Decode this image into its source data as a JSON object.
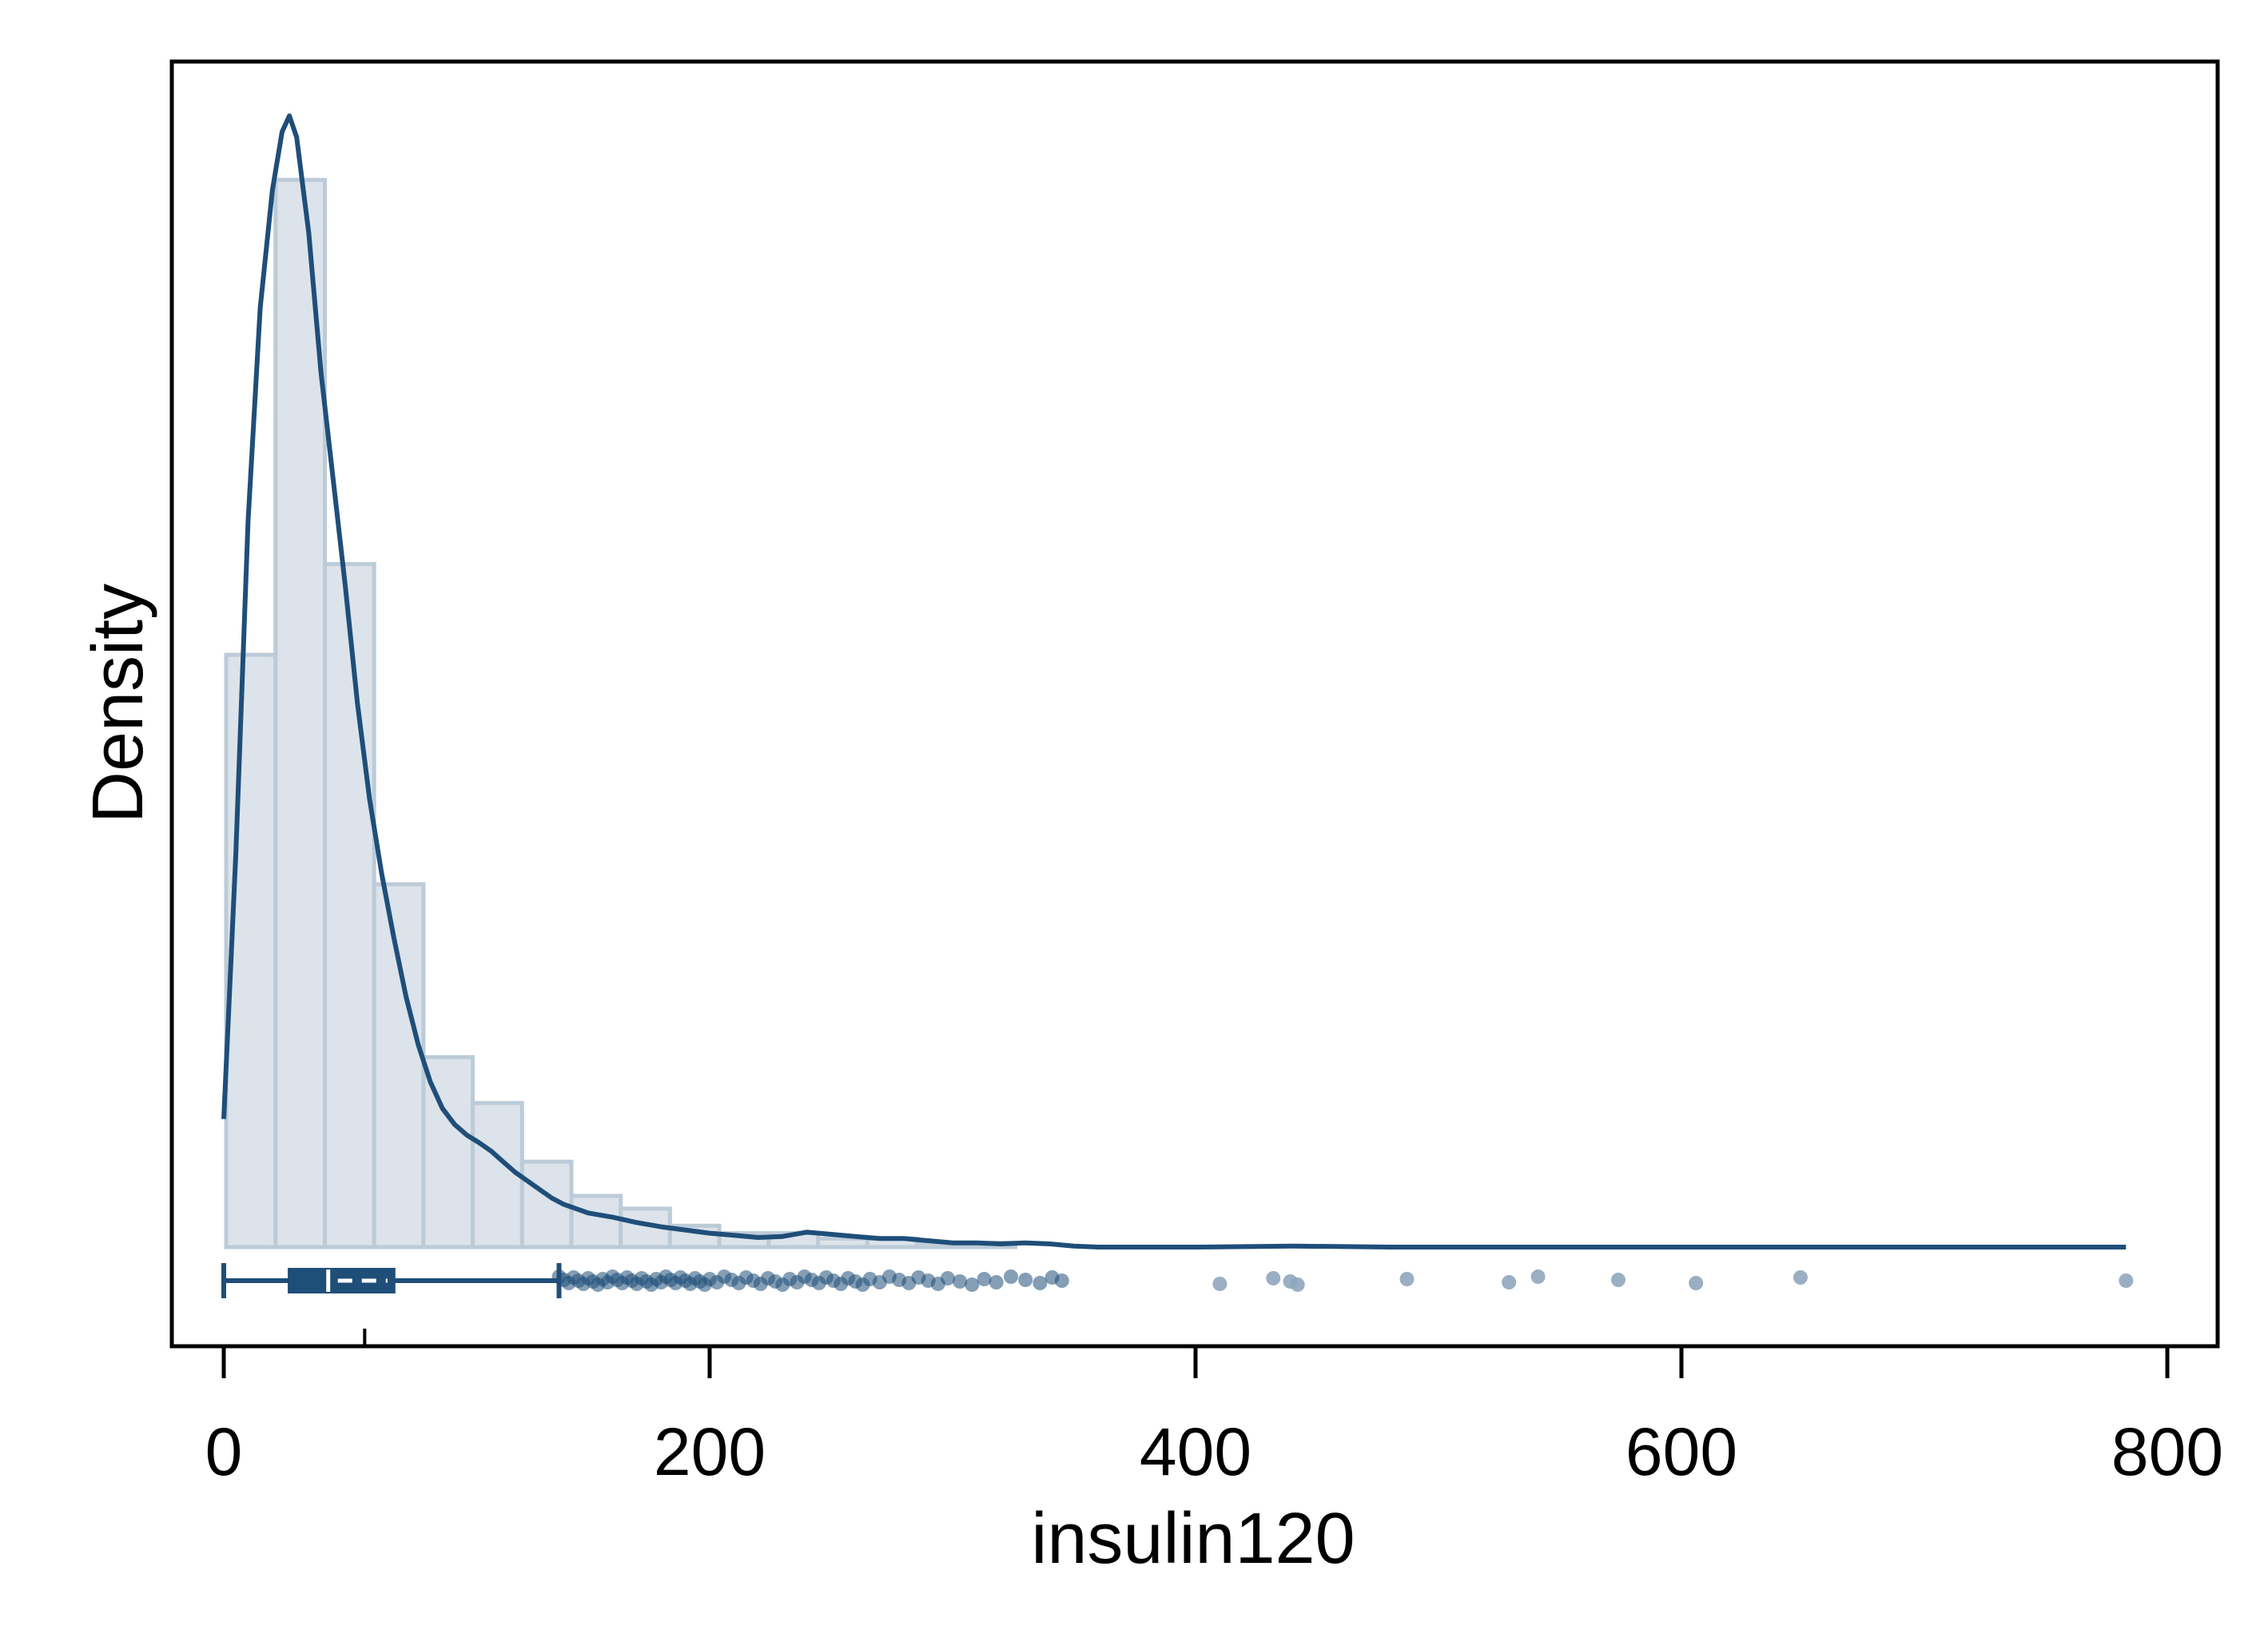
{
  "chart_data": {
    "type": "histogram",
    "xlabel": "insulin120",
    "ylabel": "Density",
    "xlim": [
      -21,
      822
    ],
    "x_ticks": [
      0,
      200,
      400,
      600,
      800
    ],
    "x_tick_labels": [
      "0",
      "200",
      "400",
      "600",
      "800"
    ],
    "y_ticks_labeled": false,
    "grid": false,
    "legend": "none",
    "histogram": {
      "bin_width": 20.3,
      "bin_start": 1,
      "relative_heights": [
        0.555,
        1.0,
        0.64,
        0.34,
        0.178,
        0.135,
        0.08,
        0.048,
        0.036,
        0.02,
        0.013,
        0.013,
        0.008,
        0.008,
        0.004,
        0.004
      ]
    },
    "density_curve": {
      "x": [
        0,
        5,
        10,
        15,
        20,
        24,
        27,
        30,
        35,
        40,
        45,
        50,
        55,
        60,
        65,
        70,
        75,
        80,
        85,
        90,
        95,
        100,
        105,
        110,
        115,
        120,
        125,
        130,
        135,
        140,
        145,
        150,
        160,
        170,
        180,
        190,
        200,
        210,
        220,
        230,
        240,
        250,
        260,
        270,
        280,
        290,
        300,
        310,
        320,
        330,
        340,
        350,
        360,
        380,
        400,
        440,
        480,
        520,
        560,
        600,
        650,
        700,
        750,
        783
      ],
      "y": [
        0.12,
        0.37,
        0.68,
        0.88,
        0.99,
        1.045,
        1.06,
        1.04,
        0.95,
        0.82,
        0.72,
        0.62,
        0.51,
        0.42,
        0.35,
        0.29,
        0.235,
        0.19,
        0.155,
        0.13,
        0.115,
        0.105,
        0.098,
        0.09,
        0.08,
        0.07,
        0.062,
        0.054,
        0.046,
        0.04,
        0.036,
        0.032,
        0.028,
        0.023,
        0.019,
        0.016,
        0.013,
        0.011,
        0.009,
        0.01,
        0.014,
        0.012,
        0.01,
        0.008,
        0.008,
        0.006,
        0.004,
        0.004,
        0.003,
        0.004,
        0.003,
        0.001,
        0.0,
        0.0,
        0.0,
        0.001,
        0.0,
        0.0,
        0.0,
        0.0,
        0.0,
        0.0,
        0.0,
        0.0
      ]
    },
    "boxplot": {
      "min": 0,
      "q1": 27,
      "median": 43,
      "mean": 58,
      "q3": 70,
      "whisker_high": 138,
      "outliers": [
        138,
        140,
        142,
        144,
        146,
        148,
        150,
        152,
        154,
        156,
        158,
        160,
        162,
        164,
        166,
        168,
        170,
        172,
        174,
        176,
        178,
        180,
        182,
        184,
        186,
        188,
        190,
        192,
        194,
        196,
        198,
        200,
        203,
        206,
        209,
        212,
        215,
        218,
        221,
        224,
        227,
        230,
        233,
        236,
        239,
        242,
        245,
        248,
        251,
        254,
        257,
        260,
        263,
        266,
        270,
        274,
        278,
        282,
        286,
        290,
        294,
        298,
        303,
        308,
        313,
        318,
        324,
        330,
        336,
        341,
        345,
        410,
        432,
        439,
        442,
        487,
        529,
        541,
        574,
        606,
        649,
        783
      ]
    },
    "colors": {
      "line": "#1f4e79",
      "bar_fill": "#dce3ea",
      "bar_edge": "#bccbd8",
      "outlier": "#8fa6bd"
    }
  }
}
